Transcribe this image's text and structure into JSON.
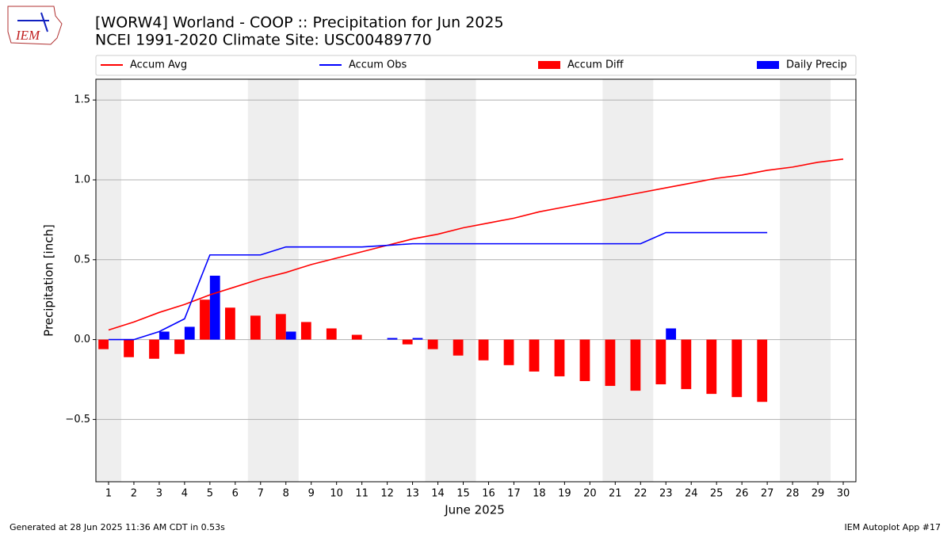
{
  "chart_data": {
    "type": "bar_line",
    "title": "[WORW4] Worland - COOP :: Precipitation for Jun 2025",
    "subtitle": "NCEI 1991-2020 Climate Site: USC00489770",
    "x_label": "June 2025",
    "y_label": "Precipitation [inch]",
    "logo_text": "IEM",
    "footer_left": "Generated at 28 Jun 2025 11:36 AM CDT in 0.53s",
    "footer_right": "IEM Autoplot App #17",
    "x": [
      1,
      2,
      3,
      4,
      5,
      6,
      7,
      8,
      9,
      10,
      11,
      12,
      13,
      14,
      15,
      16,
      17,
      18,
      19,
      20,
      21,
      22,
      23,
      24,
      25,
      26,
      27,
      28,
      29,
      30
    ],
    "xlim": [
      0.5,
      30.5
    ],
    "xticks": [
      1,
      2,
      3,
      4,
      5,
      6,
      7,
      8,
      9,
      10,
      11,
      12,
      13,
      14,
      15,
      16,
      17,
      18,
      19,
      20,
      21,
      22,
      23,
      24,
      25,
      26,
      27,
      28,
      29,
      30
    ],
    "ylim": [
      -0.89,
      1.63
    ],
    "yticks": [
      {
        "value": -0.5,
        "label": "−0.5"
      },
      {
        "value": 0,
        "label": "0.0"
      },
      0.5,
      {
        "value": 1,
        "label": "1.0"
      },
      1.5
    ],
    "grid": true,
    "shaded_spans": [
      [
        0.5,
        1.5
      ],
      [
        6.5,
        8.5
      ],
      [
        13.5,
        15.5
      ],
      [
        20.5,
        22.5
      ],
      [
        27.5,
        29.5
      ]
    ],
    "series": [
      {
        "name": "Accum Avg",
        "kind": "line",
        "color": "#ff0000",
        "values": [
          0.06,
          0.11,
          0.17,
          0.22,
          0.28,
          0.33,
          0.38,
          0.42,
          0.47,
          0.51,
          0.55,
          0.59,
          0.63,
          0.66,
          0.7,
          0.73,
          0.76,
          0.8,
          0.83,
          0.86,
          0.89,
          0.92,
          0.95,
          0.98,
          1.01,
          1.03,
          1.06,
          1.08,
          1.11,
          1.13
        ]
      },
      {
        "name": "Accum Obs",
        "kind": "line",
        "color": "#0000ff",
        "values": [
          0,
          0,
          0.05,
          0.13,
          0.53,
          0.53,
          0.53,
          0.58,
          0.58,
          0.58,
          0.58,
          0.59,
          0.6,
          0.6,
          0.6,
          0.6,
          0.6,
          0.6,
          0.6,
          0.6,
          0.6,
          0.6,
          0.67,
          0.67,
          0.67,
          0.67,
          0.67,
          null,
          null,
          null
        ]
      },
      {
        "name": "Accum Diff",
        "kind": "bar",
        "color": "#ff0000",
        "values": [
          -0.06,
          -0.11,
          -0.12,
          -0.09,
          0.25,
          0.2,
          0.15,
          0.16,
          0.11,
          0.07,
          0.03,
          0.0,
          -0.03,
          -0.06,
          -0.1,
          -0.13,
          -0.16,
          -0.2,
          -0.23,
          -0.26,
          -0.29,
          -0.32,
          -0.28,
          -0.31,
          -0.34,
          -0.36,
          -0.39,
          null,
          null,
          null
        ]
      },
      {
        "name": "Daily Precip",
        "kind": "bar",
        "color": "#0000ff",
        "values": [
          0,
          0,
          0.05,
          0.08,
          0.4,
          0,
          0,
          0.05,
          0,
          0,
          0,
          0.01,
          0.01,
          0,
          0,
          0,
          0,
          0,
          0,
          0,
          0,
          0,
          0.07,
          0,
          0,
          0,
          0,
          null,
          null,
          null
        ]
      }
    ]
  }
}
